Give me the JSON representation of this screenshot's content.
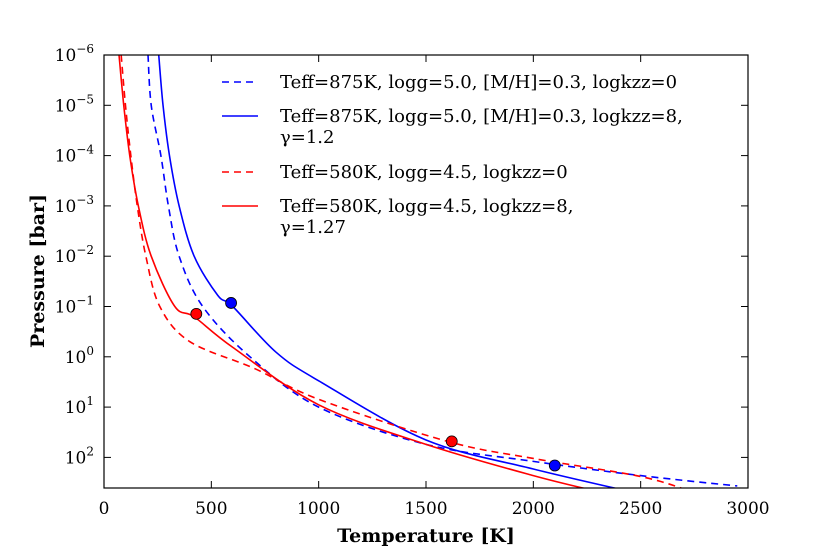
{
  "chart_data": {
    "type": "line",
    "xlabel": "Temperature [K]",
    "ylabel": "Pressure [bar]",
    "xlim": [
      0,
      3000
    ],
    "ylim": [
      1e-06,
      500
    ],
    "y_scale": "log",
    "y_inverted": true,
    "xticks": [
      "0",
      "500",
      "1000",
      "1500",
      "2000",
      "2500",
      "3000"
    ],
    "yticks": [
      {
        "base": "10",
        "exp": "−6"
      },
      {
        "base": "10",
        "exp": "−5"
      },
      {
        "base": "10",
        "exp": "−4"
      },
      {
        "base": "10",
        "exp": "−3"
      },
      {
        "base": "10",
        "exp": "−2"
      },
      {
        "base": "10",
        "exp": "−1"
      },
      {
        "base": "10",
        "exp": "0"
      },
      {
        "base": "10",
        "exp": "1"
      },
      {
        "base": "10",
        "exp": "2"
      }
    ],
    "ytick_values": [
      1e-06,
      1e-05,
      0.0001,
      0.001,
      0.01,
      0.1,
      1,
      10,
      100
    ],
    "grid": false,
    "legend_position": "top-right",
    "series": [
      {
        "name": "Teff=875K, logg=5.0, [M/H]=0.3, logkzz=0",
        "color": "#0000ff",
        "style": "dashed",
        "points": [
          [
            205,
            1e-06
          ],
          [
            220,
            1e-05
          ],
          [
            265,
            0.0001
          ],
          [
            300,
            0.001
          ],
          [
            350,
            0.01
          ],
          [
            460,
            0.1
          ],
          [
            680,
            1
          ],
          [
            1000,
            10
          ],
          [
            1500,
            55
          ],
          [
            2000,
            120
          ],
          [
            2500,
            230
          ],
          [
            2950,
            370
          ]
        ],
        "marker": [
          2100,
          145
        ]
      },
      {
        "name": "Teff=875K, logg=5.0, [M/H]=0.3, logkzz=8, γ=1.2",
        "color": "#0000ff",
        "style": "solid",
        "points": [
          [
            255,
            1e-06
          ],
          [
            275,
            1e-05
          ],
          [
            305,
            0.0001
          ],
          [
            350,
            0.001
          ],
          [
            420,
            0.01
          ],
          [
            530,
            0.06
          ],
          [
            600,
            0.1
          ],
          [
            800,
            0.8
          ],
          [
            1000,
            3
          ],
          [
            1500,
            45
          ],
          [
            2000,
            170
          ],
          [
            2470,
            500
          ]
        ],
        "marker": [
          592,
          0.085
        ]
      },
      {
        "name": "Teff=580K, logg=4.5, logkzz=0",
        "color": "#ff0000",
        "style": "dashed",
        "points": [
          [
            80,
            1e-06
          ],
          [
            100,
            1e-05
          ],
          [
            125,
            0.0001
          ],
          [
            155,
            0.001
          ],
          [
            195,
            0.01
          ],
          [
            260,
            0.1
          ],
          [
            400,
            0.5
          ],
          [
            700,
            1.7
          ],
          [
            1000,
            7
          ],
          [
            1600,
            48
          ],
          [
            2000,
            105
          ],
          [
            2500,
            240
          ],
          [
            2750,
            500
          ]
        ],
        "marker": [
          1620,
          48
        ]
      },
      {
        "name": "Teff=580K, logg=4.5, logkzz=8, γ=1.27",
        "color": "#ff0000",
        "style": "solid",
        "points": [
          [
            70,
            1e-06
          ],
          [
            92,
            1e-05
          ],
          [
            120,
            0.0001
          ],
          [
            160,
            0.001
          ],
          [
            220,
            0.01
          ],
          [
            330,
            0.1
          ],
          [
            420,
            0.16
          ],
          [
            600,
            0.65
          ],
          [
            1000,
            9
          ],
          [
            1500,
            55
          ],
          [
            2000,
            230
          ],
          [
            2320,
            500
          ]
        ],
        "marker": [
          430,
          0.14
        ]
      }
    ]
  }
}
